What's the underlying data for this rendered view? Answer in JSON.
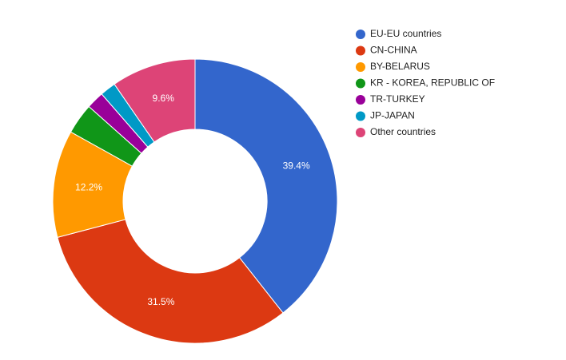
{
  "chart_data": {
    "type": "donut",
    "categories": [
      "EU-EU countries",
      "CN-CHINA",
      "BY-BELARUS",
      "KR - KOREA, REPUBLIC OF",
      "TR-TURKEY",
      "JP-JAPAN",
      "Other countries"
    ],
    "values": [
      39.4,
      31.5,
      12.2,
      3.5,
      2.0,
      1.8,
      9.6
    ],
    "value_labels": [
      "39.4%",
      "31.5%",
      "12.2%",
      null,
      null,
      null,
      "9.6%"
    ],
    "colors": [
      "#3366cc",
      "#dc3912",
      "#ff9900",
      "#109618",
      "#990099",
      "#0099c6",
      "#dd4477"
    ],
    "legend": "right"
  }
}
